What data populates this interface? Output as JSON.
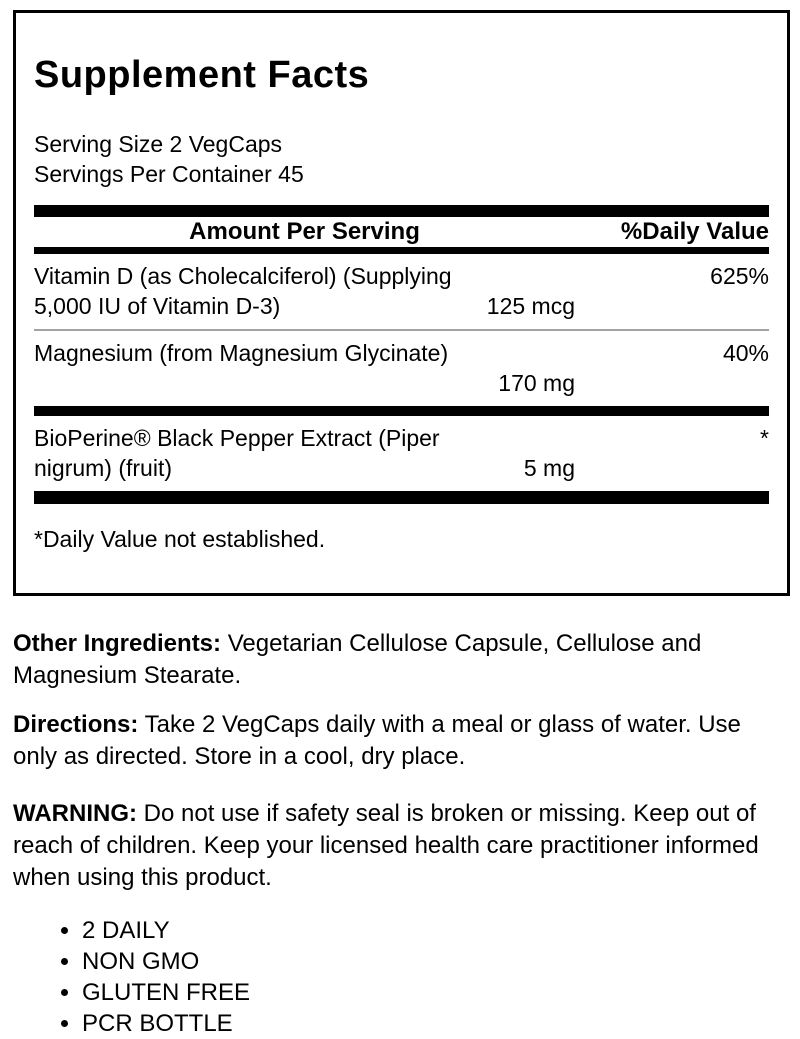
{
  "panel": {
    "title": "Supplement Facts",
    "serving_size": "Serving Size 2 VegCaps",
    "servings_per_container": "Servings Per Container 45",
    "header": {
      "amount_label": "Amount Per Serving",
      "dv_label": "%Daily Value"
    },
    "rows": [
      {
        "name_line1": "Vitamin D (as Cholecalciferol) (Supplying",
        "name_line2": "5,000 IU of Vitamin D-3)",
        "amount": "125 mcg",
        "daily_value": "625%"
      },
      {
        "name_line1": "Magnesium (from Magnesium Glycinate)",
        "name_line2": "",
        "amount": "170 mg",
        "daily_value": "40%"
      },
      {
        "name_line1": "BioPerine® Black Pepper Extract (Piper",
        "name_line2": "nigrum) (fruit)",
        "amount": "5 mg",
        "daily_value": "*"
      }
    ],
    "footnote": "*Daily Value not established."
  },
  "sections": [
    {
      "label": "Other Ingredients:",
      "text": "Vegetarian Cellulose Capsule, Cellulose and Magnesium Stearate."
    },
    {
      "label": "Directions:",
      "text": "Take 2 VegCaps daily with a meal or glass of water. Use only as directed. Store in a cool, dry place."
    },
    {
      "label": "WARNING:",
      "text": "Do not use if safety seal is broken or missing. Keep out of reach of children. Keep your licensed health care practitioner informed when using this product."
    }
  ],
  "features": [
    "2 DAILY",
    "NON GMO",
    "GLUTEN FREE",
    "PCR BOTTLE"
  ],
  "colors": {
    "text": "#000000",
    "separator_bar": "#000000",
    "thin_divider": "#a3a3a3",
    "border": "#000000",
    "background": "#ffffff"
  }
}
